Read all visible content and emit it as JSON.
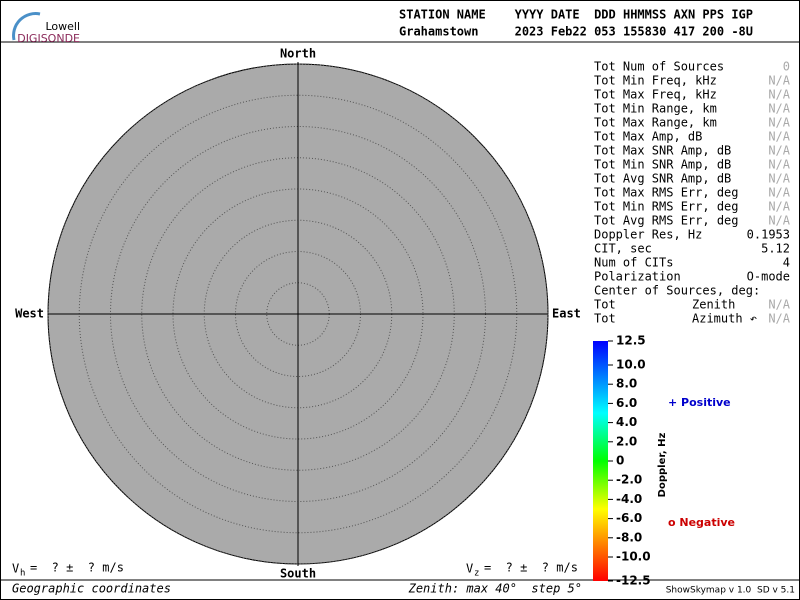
{
  "logo": {
    "line1": "Lowell",
    "line2": "DIGISONDE"
  },
  "header": {
    "labels": "STATION NAME    YYYY DATE  DDD HHMMSS AXN PPS IGP",
    "values": "Grahamstown     2023 Feb22 053 155830 417 200 -8U"
  },
  "stats": [
    [
      "Tot Num of Sources",
      0
    ],
    [
      "Tot Min Freq, kHz",
      "N/A"
    ],
    [
      "Tot Max Freq, kHz",
      "N/A"
    ],
    [
      "Tot Min Range, km",
      "N/A"
    ],
    [
      "Tot Max Range, km",
      "N/A"
    ],
    [
      "Tot Max Amp, dB",
      "N/A"
    ],
    [
      "Tot Max SNR Amp, dB",
      "N/A"
    ],
    [
      "Tot Min SNR Amp, dB",
      "N/A"
    ],
    [
      "Tot Avg SNR Amp, dB",
      "N/A"
    ],
    [
      "Tot Max RMS Err, deg",
      "N/A"
    ],
    [
      "Tot Min RMS Err, deg",
      "N/A"
    ],
    [
      "Tot Avg RMS Err, deg",
      "N/A"
    ],
    [
      "Doppler Res, Hz",
      0.1953
    ],
    [
      "CIT, sec",
      5.12
    ],
    [
      "Num of CITs",
      4
    ],
    [
      "Polarization",
      "O-mode"
    ]
  ],
  "center": {
    "title": "Center of Sources, deg:",
    "rows": [
      [
        "Tot",
        "Zenith",
        "N/A"
      ],
      [
        "Tot",
        "Azimuth ↶",
        "N/A"
      ]
    ]
  },
  "chart_data": {
    "type": "skymap",
    "directions": {
      "north": "North",
      "south": "South",
      "east": "East",
      "west": "West"
    },
    "rlim": [
      0,
      40
    ],
    "rticks": [
      5,
      10,
      15,
      20,
      25,
      30,
      35,
      40
    ],
    "colorbar": {
      "label": "Doppler, Hz",
      "ylim": [
        -12.5,
        12.5
      ],
      "yticks": [
        12.5,
        {
          "value": 10,
          "label": "10.0"
        },
        {
          "value": 8,
          "label": "8.0"
        },
        {
          "value": 6,
          "label": "6.0"
        },
        {
          "value": 4,
          "label": "4.0"
        },
        {
          "value": 2,
          "label": "2.0"
        },
        0,
        {
          "value": -2,
          "label": "-2.0"
        },
        {
          "value": -4,
          "label": "-4.0"
        },
        {
          "value": -6,
          "label": "-6.0"
        },
        {
          "value": -8,
          "label": "-8.0"
        },
        {
          "value": -10,
          "label": "-10.0"
        },
        -12.5
      ]
    },
    "legend": {
      "positive": "+ Positive",
      "negative": "o Negative"
    },
    "vh": {
      "symbol": "V",
      "sub": "h",
      "text": "=  ? ±  ? m/s"
    },
    "vz": {
      "symbol": "V",
      "sub": "z",
      "text": "=  ? ±  ? m/s"
    },
    "coordinates": "Geographic coordinates",
    "zenith_note": "Zenith: max 40°  step 5°"
  },
  "version": "ShowSkymap v 1.0  SD v 5.1"
}
